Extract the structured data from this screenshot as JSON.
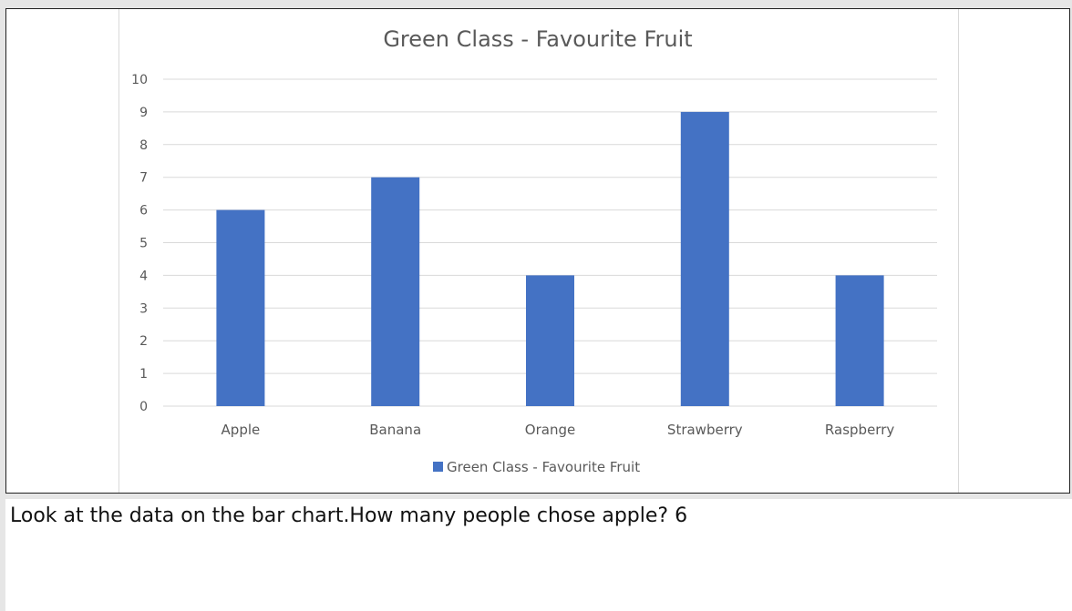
{
  "chart_data": {
    "type": "bar",
    "title": "Green Class -  Favourite Fruit",
    "categories": [
      "Apple",
      "Banana",
      "Orange",
      "Strawberry",
      "Raspberry"
    ],
    "series": [
      {
        "name": "Green Class -  Favourite Fruit",
        "values": [
          6,
          7,
          4,
          9,
          4
        ],
        "color": "#4472c4"
      }
    ],
    "ylim": [
      0,
      10
    ],
    "yticks": [
      "0",
      "1",
      "2",
      "3",
      "4",
      "5",
      "6",
      "7",
      "8",
      "9",
      "10"
    ],
    "xlabel": "",
    "ylabel": "",
    "grid": true,
    "legend_position": "bottom"
  },
  "question": {
    "text": "Look at the data on the bar chart.How many people chose apple? 6"
  }
}
